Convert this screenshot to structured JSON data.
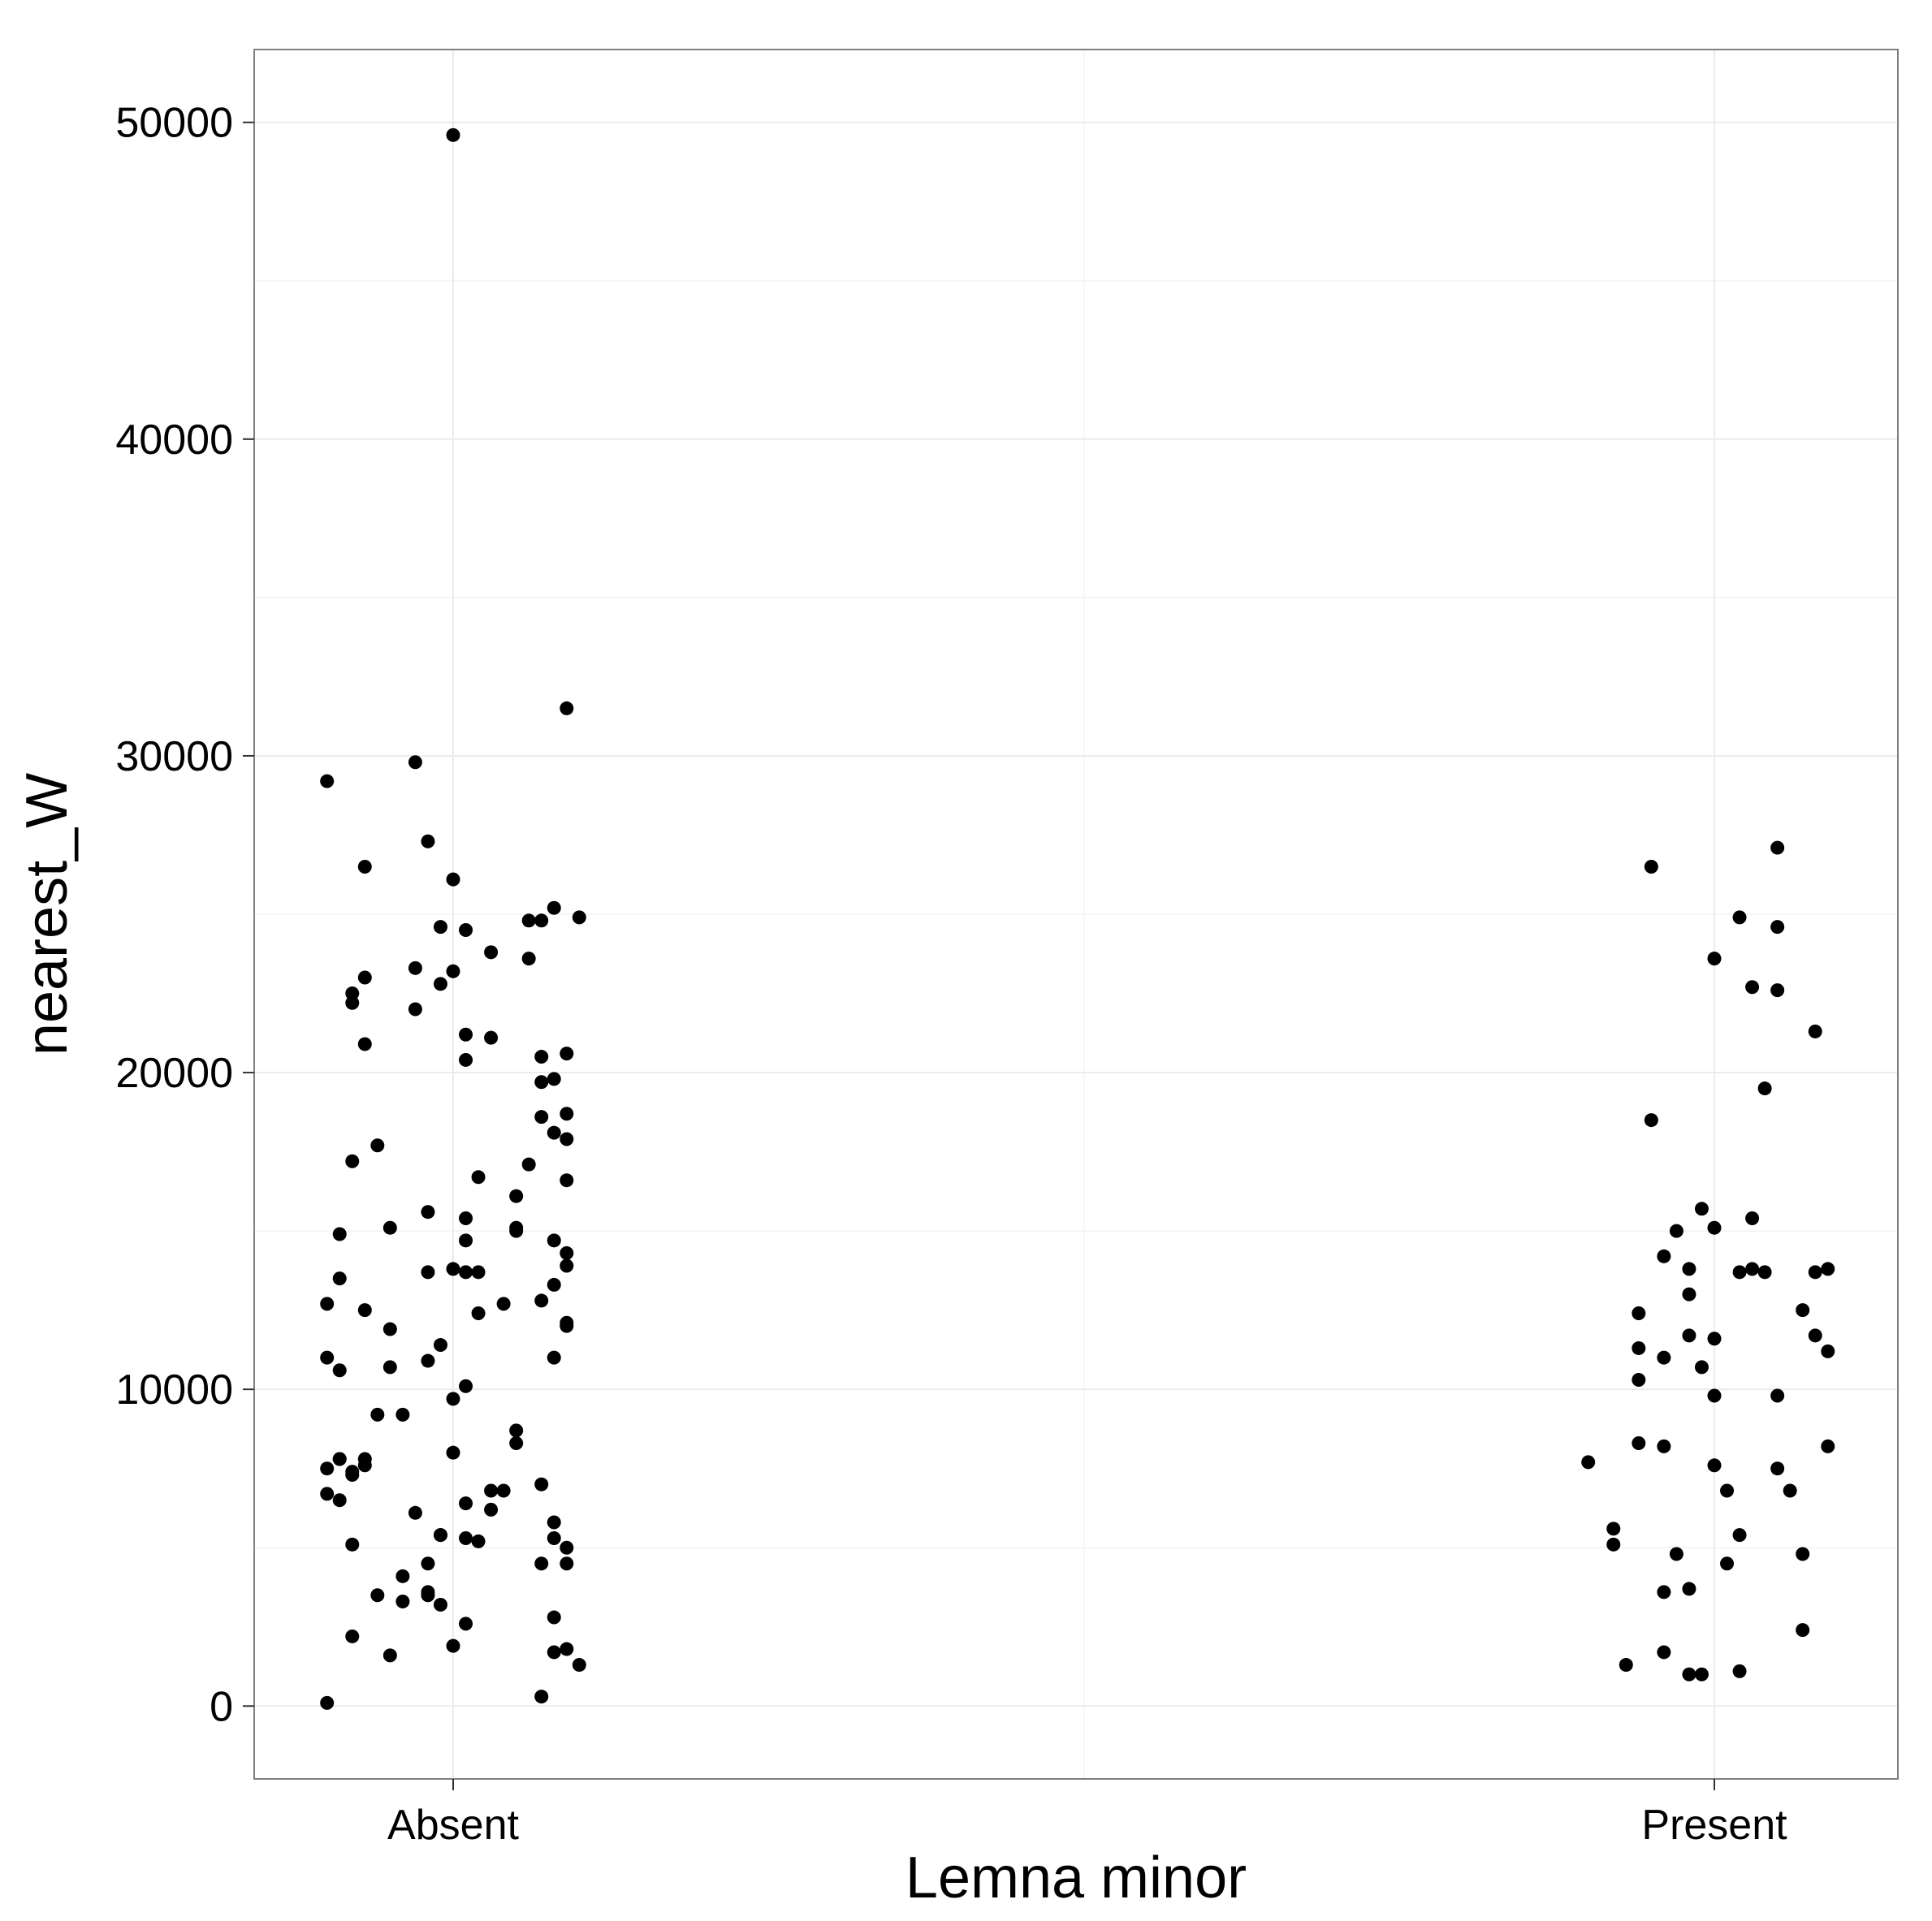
{
  "chart_data": {
    "type": "scatter",
    "title": "",
    "xlabel": "Lemna minor",
    "ylabel": "nearest_W",
    "categories": [
      "Absent",
      "Present"
    ],
    "ylim": [
      -2300,
      52300
    ],
    "yticks": [
      0,
      10000,
      20000,
      30000,
      40000,
      50000
    ],
    "ytick_labels": [
      "0",
      "10000",
      "20000",
      "30000",
      "40000",
      "50000"
    ],
    "grid": true,
    "legend": "none",
    "point_color": "#000000",
    "series": [
      {
        "category": "Absent",
        "points": [
          [
            -0.1,
            29200
          ],
          [
            -0.03,
            29800
          ],
          [
            0.09,
            31500
          ],
          [
            -0.07,
            26500
          ],
          [
            -0.02,
            27300
          ],
          [
            0.0,
            26100
          ],
          [
            -0.01,
            24600
          ],
          [
            0.01,
            24500
          ],
          [
            0.06,
            24800
          ],
          [
            0.07,
            24800
          ],
          [
            0.08,
            25200
          ],
          [
            0.1,
            24900
          ],
          [
            -0.03,
            23300
          ],
          [
            0.0,
            23200
          ],
          [
            -0.01,
            22800
          ],
          [
            0.03,
            23800
          ],
          [
            0.06,
            23600
          ],
          [
            -0.07,
            23000
          ],
          [
            -0.08,
            22500
          ],
          [
            -0.08,
            22200
          ],
          [
            -0.03,
            22000
          ],
          [
            0.01,
            21200
          ],
          [
            0.03,
            21100
          ],
          [
            -0.07,
            20900
          ],
          [
            0.01,
            20400
          ],
          [
            0.07,
            20500
          ],
          [
            0.09,
            20600
          ],
          [
            0.08,
            19800
          ],
          [
            0.07,
            19700
          ],
          [
            0.07,
            18600
          ],
          [
            0.09,
            18700
          ],
          [
            0.08,
            18100
          ],
          [
            0.09,
            17900
          ],
          [
            -0.06,
            17700
          ],
          [
            -0.08,
            17200
          ],
          [
            0.06,
            17100
          ],
          [
            0.02,
            16700
          ],
          [
            0.09,
            16600
          ],
          [
            0.05,
            16100
          ],
          [
            -0.02,
            15600
          ],
          [
            0.01,
            15400
          ],
          [
            -0.05,
            15100
          ],
          [
            0.05,
            15100
          ],
          [
            0.05,
            15000
          ],
          [
            -0.09,
            14900
          ],
          [
            0.01,
            14700
          ],
          [
            0.08,
            14700
          ],
          [
            0.09,
            14300
          ],
          [
            0.09,
            13900
          ],
          [
            0.0,
            13800
          ],
          [
            0.01,
            13700
          ],
          [
            0.02,
            13700
          ],
          [
            -0.02,
            13700
          ],
          [
            -0.09,
            13500
          ],
          [
            0.08,
            13300
          ],
          [
            -0.1,
            12700
          ],
          [
            0.04,
            12700
          ],
          [
            0.07,
            12800
          ],
          [
            -0.07,
            12500
          ],
          [
            0.02,
            12400
          ],
          [
            0.09,
            12000
          ],
          [
            0.09,
            12100
          ],
          [
            -0.05,
            11900
          ],
          [
            -0.01,
            11400
          ],
          [
            -0.02,
            10900
          ],
          [
            0.08,
            11000
          ],
          [
            -0.1,
            11000
          ],
          [
            -0.09,
            10600
          ],
          [
            -0.05,
            10700
          ],
          [
            0.01,
            10100
          ],
          [
            0.0,
            9700
          ],
          [
            -0.06,
            9200
          ],
          [
            -0.04,
            9200
          ],
          [
            0.05,
            8700
          ],
          [
            0.05,
            8300
          ],
          [
            0.0,
            8000
          ],
          [
            -0.09,
            7800
          ],
          [
            -0.09,
            7800
          ],
          [
            -0.07,
            7800
          ],
          [
            -0.1,
            7500
          ],
          [
            -0.08,
            7400
          ],
          [
            -0.08,
            7300
          ],
          [
            -0.07,
            7600
          ],
          [
            -0.1,
            6700
          ],
          [
            -0.09,
            6500
          ],
          [
            0.03,
            6800
          ],
          [
            0.04,
            6800
          ],
          [
            0.07,
            7000
          ],
          [
            0.01,
            6400
          ],
          [
            0.03,
            6200
          ],
          [
            -0.03,
            6100
          ],
          [
            0.08,
            5800
          ],
          [
            -0.01,
            5400
          ],
          [
            -0.01,
            5400
          ],
          [
            0.01,
            5300
          ],
          [
            0.02,
            5200
          ],
          [
            -0.08,
            5100
          ],
          [
            0.08,
            5300
          ],
          [
            0.09,
            5000
          ],
          [
            0.09,
            4500
          ],
          [
            0.07,
            4500
          ],
          [
            -0.02,
            4500
          ],
          [
            -0.04,
            4100
          ],
          [
            -0.02,
            3600
          ],
          [
            -0.02,
            3500
          ],
          [
            -0.06,
            3500
          ],
          [
            -0.04,
            3300
          ],
          [
            -0.01,
            3200
          ],
          [
            0.08,
            2800
          ],
          [
            0.01,
            2600
          ],
          [
            -0.08,
            2200
          ],
          [
            0.0,
            1900
          ],
          [
            0.08,
            1700
          ],
          [
            0.09,
            1800
          ],
          [
            0.1,
            1300
          ],
          [
            -0.05,
            1600
          ],
          [
            0.07,
            300
          ],
          [
            -0.1,
            100
          ],
          [
            0.0,
            49600
          ]
        ]
      },
      {
        "category": "Present",
        "points": [
          [
            -0.05,
            26500
          ],
          [
            0.05,
            27100
          ],
          [
            0.02,
            24900
          ],
          [
            0.05,
            24600
          ],
          [
            0.0,
            23600
          ],
          [
            0.03,
            22700
          ],
          [
            0.05,
            22600
          ],
          [
            0.08,
            21300
          ],
          [
            0.04,
            19500
          ],
          [
            -0.05,
            18500
          ],
          [
            -0.01,
            15700
          ],
          [
            0.0,
            15100
          ],
          [
            0.03,
            15400
          ],
          [
            -0.03,
            15000
          ],
          [
            -0.04,
            14200
          ],
          [
            -0.02,
            13800
          ],
          [
            0.02,
            13700
          ],
          [
            0.03,
            13800
          ],
          [
            0.04,
            13700
          ],
          [
            0.08,
            13700
          ],
          [
            0.09,
            13800
          ],
          [
            -0.02,
            13000
          ],
          [
            -0.06,
            12400
          ],
          [
            0.07,
            12500
          ],
          [
            -0.06,
            11300
          ],
          [
            -0.04,
            11000
          ],
          [
            -0.02,
            11700
          ],
          [
            0.0,
            11600
          ],
          [
            0.08,
            11700
          ],
          [
            0.09,
            11200
          ],
          [
            -0.06,
            10300
          ],
          [
            -0.01,
            10700
          ],
          [
            0.0,
            9800
          ],
          [
            0.05,
            9800
          ],
          [
            -0.1,
            7700
          ],
          [
            -0.06,
            8300
          ],
          [
            -0.04,
            8200
          ],
          [
            0.0,
            7600
          ],
          [
            0.09,
            8200
          ],
          [
            0.05,
            7500
          ],
          [
            0.01,
            6800
          ],
          [
            0.06,
            6800
          ],
          [
            -0.08,
            5600
          ],
          [
            -0.08,
            5100
          ],
          [
            0.02,
            5400
          ],
          [
            -0.03,
            4800
          ],
          [
            0.01,
            4500
          ],
          [
            0.07,
            4800
          ],
          [
            -0.04,
            3600
          ],
          [
            -0.02,
            3700
          ],
          [
            0.07,
            2400
          ],
          [
            -0.07,
            1300
          ],
          [
            -0.04,
            1700
          ],
          [
            -0.02,
            1000
          ],
          [
            -0.01,
            1000
          ],
          [
            0.02,
            1100
          ]
        ]
      }
    ]
  }
}
